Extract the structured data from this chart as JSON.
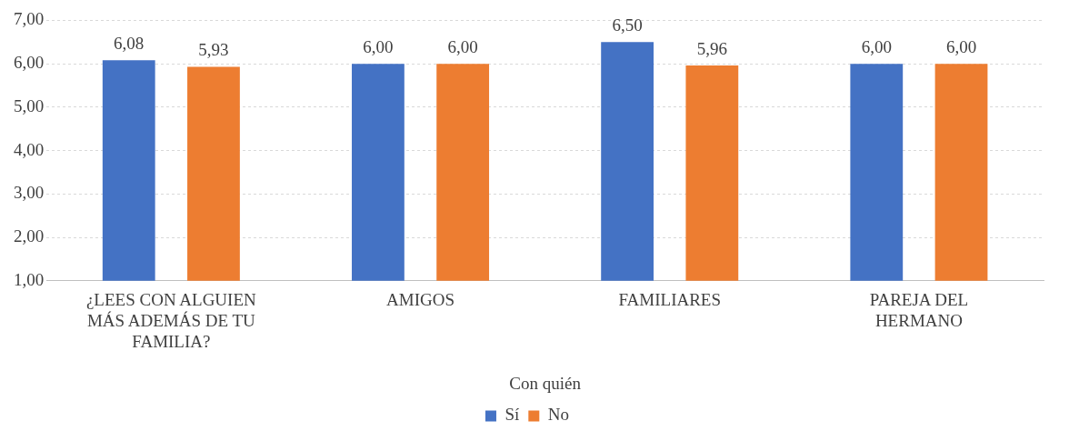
{
  "chart_data": {
    "type": "bar",
    "categories": [
      "¿LEES CON ALGUIEN MÁS ADEMÁS DE TU FAMILIA?",
      "AMIGOS",
      "FAMILIARES",
      "PAREJA DEL HERMANO"
    ],
    "xlabel": "Con quién",
    "series": [
      {
        "name": "Sí",
        "color": "#4472c4",
        "values": [
          6.08,
          6.0,
          6.5,
          6.0
        ],
        "value_labels": [
          "6,08",
          "6,00",
          "6,50",
          "6,00"
        ]
      },
      {
        "name": "No",
        "color": "#ed7d31",
        "values": [
          5.93,
          6.0,
          5.96,
          6.0
        ],
        "value_labels": [
          "5,93",
          "6,00",
          "5,96",
          "6,00"
        ]
      }
    ],
    "ylim": [
      1,
      7
    ],
    "yticks": [
      {
        "value": 1,
        "label": "1,00"
      },
      {
        "value": 2,
        "label": "2,00"
      },
      {
        "value": 3,
        "label": "3,00"
      },
      {
        "value": 4,
        "label": "4,00"
      },
      {
        "value": 5,
        "label": "5,00"
      },
      {
        "value": 6,
        "label": "6,00"
      },
      {
        "value": 7,
        "label": "7,00"
      }
    ],
    "grid": "y",
    "legend": "bottom"
  }
}
